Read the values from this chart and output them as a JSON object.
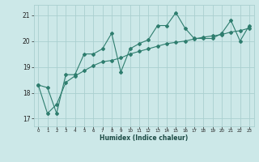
{
  "xlabel": "Humidex (Indice chaleur)",
  "background_color": "#cce8e8",
  "line_color": "#2e7d6e",
  "grid_color": "#aacfcf",
  "x_data": [
    0,
    1,
    2,
    3,
    4,
    5,
    6,
    7,
    8,
    9,
    10,
    11,
    12,
    13,
    14,
    15,
    16,
    17,
    18,
    19,
    20,
    21,
    22,
    23
  ],
  "y_line1": [
    18.3,
    18.2,
    17.2,
    18.7,
    18.7,
    19.5,
    19.5,
    19.7,
    20.3,
    18.8,
    19.7,
    19.9,
    20.05,
    20.6,
    20.6,
    21.1,
    20.5,
    20.1,
    20.1,
    20.1,
    20.3,
    20.8,
    20.0,
    20.6
  ],
  "y_line2": [
    18.3,
    17.2,
    17.55,
    18.4,
    18.65,
    18.85,
    19.05,
    19.2,
    19.25,
    19.35,
    19.5,
    19.6,
    19.7,
    19.8,
    19.9,
    19.95,
    20.0,
    20.08,
    20.15,
    20.2,
    20.25,
    20.35,
    20.4,
    20.5
  ],
  "ylim": [
    16.7,
    21.4
  ],
  "xlim": [
    -0.5,
    23.5
  ],
  "yticks": [
    17,
    18,
    19,
    20,
    21
  ],
  "xticks": [
    0,
    1,
    2,
    3,
    4,
    5,
    6,
    7,
    8,
    9,
    10,
    11,
    12,
    13,
    14,
    15,
    16,
    17,
    18,
    19,
    20,
    21,
    22,
    23
  ]
}
